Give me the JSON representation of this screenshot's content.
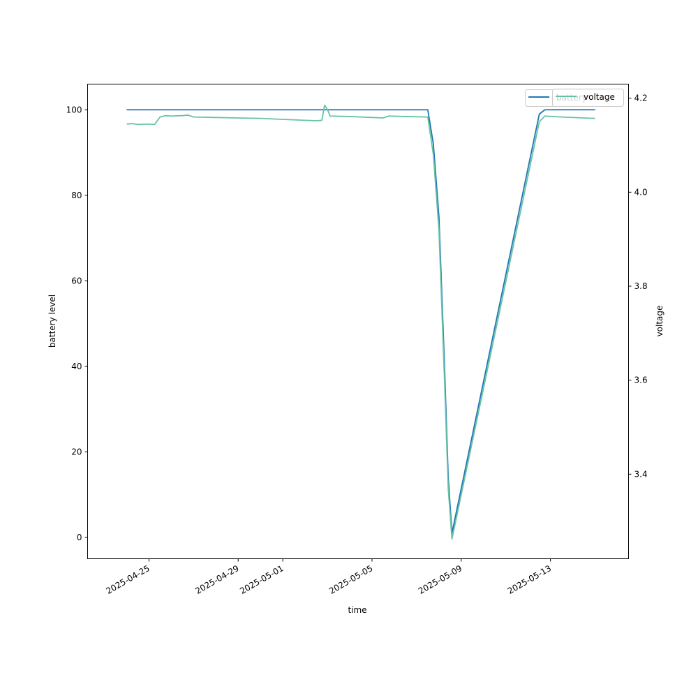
{
  "chart_data": {
    "type": "line",
    "xlabel": "time",
    "ylabel": "battery level",
    "ylabel_right": "voltage",
    "x_ticks": [
      "2025-04-25",
      "2025-04-29",
      "2025-05-01",
      "2025-05-05",
      "2025-05-09",
      "2025-05-13"
    ],
    "xlim": [
      "2025-04-22T06:00",
      "2025-05-16T12:00"
    ],
    "ylim": [
      -5,
      106
    ],
    "ylim_right": [
      3.22,
      4.23
    ],
    "y_ticks": [
      0,
      20,
      40,
      60,
      80,
      100
    ],
    "y_ticks_right": [
      3.4,
      3.6,
      3.8,
      4.0,
      4.2
    ],
    "grid": false,
    "legend_entries": [
      "battery",
      "voltage"
    ],
    "legend_placement": "top-right (overlapping)",
    "series": [
      {
        "name": "battery",
        "axis": "left",
        "color": "#1f77b4",
        "points": [
          [
            "2025-04-24T00:00",
            100
          ],
          [
            "2025-05-07T12:00",
            100
          ],
          [
            "2025-05-07T18:00",
            92
          ],
          [
            "2025-05-08T00:00",
            75
          ],
          [
            "2025-05-08T06:00",
            40
          ],
          [
            "2025-05-08T10:00",
            14
          ],
          [
            "2025-05-08T14:00",
            1
          ],
          [
            "2025-05-12T12:00",
            99
          ],
          [
            "2025-05-12T18:00",
            100
          ],
          [
            "2025-05-15T00:00",
            100
          ]
        ]
      },
      {
        "name": "voltage",
        "axis": "right",
        "color": "#66c2a5",
        "points": [
          [
            "2025-04-24T00:00",
            4.145
          ],
          [
            "2025-04-24T06:00",
            4.146
          ],
          [
            "2025-04-24T12:00",
            4.144
          ],
          [
            "2025-04-25T00:00",
            4.145
          ],
          [
            "2025-04-25T06:00",
            4.144
          ],
          [
            "2025-04-25T12:00",
            4.16
          ],
          [
            "2025-04-25T18:00",
            4.163
          ],
          [
            "2025-04-26T00:00",
            4.162
          ],
          [
            "2025-04-26T12:00",
            4.163
          ],
          [
            "2025-04-26T18:00",
            4.164
          ],
          [
            "2025-04-27T00:00",
            4.16
          ],
          [
            "2025-04-28T00:00",
            4.159
          ],
          [
            "2025-04-29T00:00",
            4.158
          ],
          [
            "2025-04-30T00:00",
            4.157
          ],
          [
            "2025-05-01T00:00",
            4.155
          ],
          [
            "2025-05-02T00:00",
            4.153
          ],
          [
            "2025-05-02T12:00",
            4.152
          ],
          [
            "2025-05-02T18:00",
            4.153
          ],
          [
            "2025-05-02T21:00",
            4.185
          ],
          [
            "2025-05-03T00:00",
            4.176
          ],
          [
            "2025-05-03T03:00",
            4.162
          ],
          [
            "2025-05-04T00:00",
            4.161
          ],
          [
            "2025-05-05T00:00",
            4.159
          ],
          [
            "2025-05-05T12:00",
            4.158
          ],
          [
            "2025-05-05T18:00",
            4.162
          ],
          [
            "2025-05-06T12:00",
            4.161
          ],
          [
            "2025-05-07T12:00",
            4.16
          ],
          [
            "2025-05-07T18:00",
            4.08
          ],
          [
            "2025-05-08T00:00",
            3.92
          ],
          [
            "2025-05-08T06:00",
            3.6
          ],
          [
            "2025-05-08T10:00",
            3.37
          ],
          [
            "2025-05-08T14:00",
            3.262
          ],
          [
            "2025-05-12T12:00",
            4.15
          ],
          [
            "2025-05-12T18:00",
            4.162
          ],
          [
            "2025-05-13T12:00",
            4.16
          ],
          [
            "2025-05-14T12:00",
            4.158
          ],
          [
            "2025-05-15T00:00",
            4.157
          ]
        ]
      }
    ]
  }
}
